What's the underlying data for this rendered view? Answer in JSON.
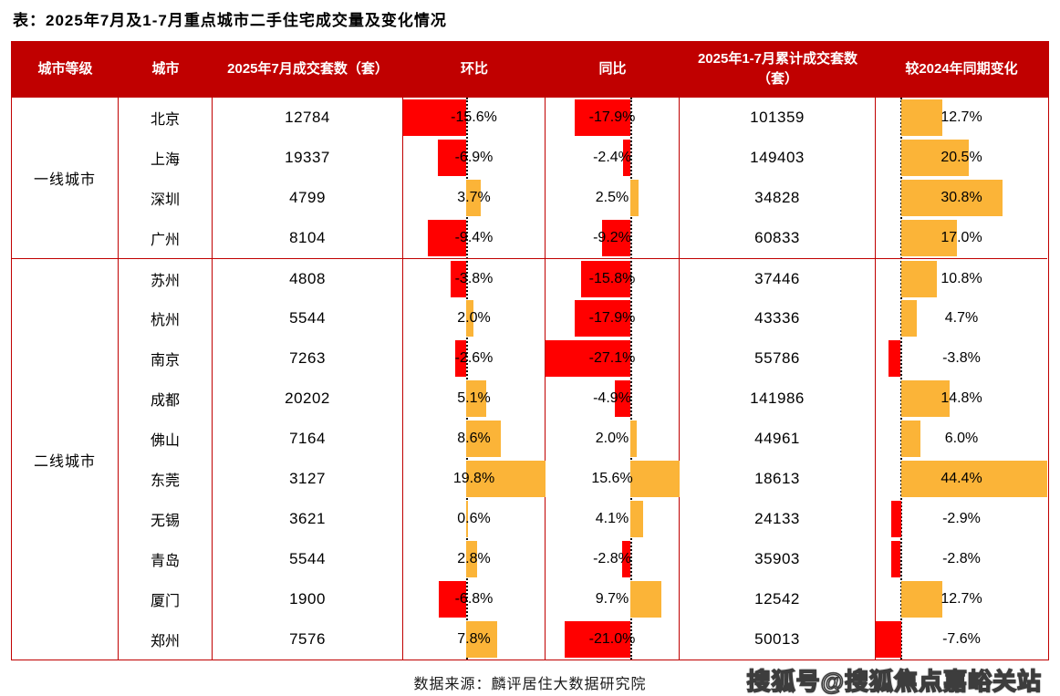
{
  "title": "表：2025年7月及1-7月重点城市二手住宅成交量及变化情况",
  "footer": {
    "source": "数据来源：麟评居住大数据研究院"
  },
  "watermark": "搜狐号@搜狐焦点嘉峪关站",
  "colors": {
    "header_bg": "#c00000",
    "table_border": "#c00000",
    "bar_negative": "#ff0000",
    "bar_positive": "#fbb438"
  },
  "chart_data": {
    "type": "table",
    "title": "2025年7月及1-7月重点城市二手住宅成交量及变化情况",
    "columns": [
      "城市等级",
      "城市",
      "2025年7月成交套数（套）",
      "环比",
      "同比",
      "2025年1-7月累计成交套数（套）",
      "较2024年同期变化"
    ],
    "bar_columns_note": "环比 / 同比 / 较2024年同期变化 rendered as data bars; red = negative, orange = positive; dotted line = zero axis auto-scaled to column min/max",
    "groups": [
      {
        "tier": "一线城市",
        "rows": [
          {
            "city": "北京",
            "jul": "12784",
            "mom": -15.6,
            "mom_label": "-15.6%",
            "yoy": -17.9,
            "yoy_label": "-17.9%",
            "cum": "101359",
            "chg": 12.7,
            "chg_label": "12.7%"
          },
          {
            "city": "上海",
            "jul": "19337",
            "mom": -6.9,
            "mom_label": "-6.9%",
            "yoy": -2.4,
            "yoy_label": "-2.4%",
            "cum": "149403",
            "chg": 20.5,
            "chg_label": "20.5%"
          },
          {
            "city": "深圳",
            "jul": "4799",
            "mom": 3.7,
            "mom_label": "3.7%",
            "yoy": 2.5,
            "yoy_label": "2.5%",
            "cum": "34828",
            "chg": 30.8,
            "chg_label": "30.8%"
          },
          {
            "city": "广州",
            "jul": "8104",
            "mom": -9.4,
            "mom_label": "-9.4%",
            "yoy": -9.2,
            "yoy_label": "-9.2%",
            "cum": "60833",
            "chg": 17.0,
            "chg_label": "17.0%"
          }
        ]
      },
      {
        "tier": "二线城市",
        "rows": [
          {
            "city": "苏州",
            "jul": "4808",
            "mom": -3.8,
            "mom_label": "-3.8%",
            "yoy": -15.8,
            "yoy_label": "-15.8%",
            "cum": "37446",
            "chg": 10.8,
            "chg_label": "10.8%"
          },
          {
            "city": "杭州",
            "jul": "5544",
            "mom": 2.0,
            "mom_label": "2.0%",
            "yoy": -17.9,
            "yoy_label": "-17.9%",
            "cum": "43336",
            "chg": 4.7,
            "chg_label": "4.7%"
          },
          {
            "city": "南京",
            "jul": "7263",
            "mom": -2.6,
            "mom_label": "-2.6%",
            "yoy": -27.1,
            "yoy_label": "-27.1%",
            "cum": "55786",
            "chg": -3.8,
            "chg_label": "-3.8%"
          },
          {
            "city": "成都",
            "jul": "20202",
            "mom": 5.1,
            "mom_label": "5.1%",
            "yoy": -4.9,
            "yoy_label": "-4.9%",
            "cum": "141986",
            "chg": 14.8,
            "chg_label": "14.8%"
          },
          {
            "city": "佛山",
            "jul": "7164",
            "mom": 8.6,
            "mom_label": "8.6%",
            "yoy": 2.0,
            "yoy_label": "2.0%",
            "cum": "44961",
            "chg": 6.0,
            "chg_label": "6.0%"
          },
          {
            "city": "东莞",
            "jul": "3127",
            "mom": 19.8,
            "mom_label": "19.8%",
            "yoy": 15.6,
            "yoy_label": "15.6%",
            "cum": "18613",
            "chg": 44.4,
            "chg_label": "44.4%"
          },
          {
            "city": "无锡",
            "jul": "3621",
            "mom": 0.6,
            "mom_label": "0.6%",
            "yoy": 4.1,
            "yoy_label": "4.1%",
            "cum": "24133",
            "chg": -2.9,
            "chg_label": "-2.9%"
          },
          {
            "city": "青岛",
            "jul": "5544",
            "mom": 2.8,
            "mom_label": "2.8%",
            "yoy": -2.8,
            "yoy_label": "-2.8%",
            "cum": "35903",
            "chg": -2.8,
            "chg_label": "-2.8%"
          },
          {
            "city": "厦门",
            "jul": "1900",
            "mom": -6.8,
            "mom_label": "-6.8%",
            "yoy": 9.7,
            "yoy_label": "9.7%",
            "cum": "12542",
            "chg": 12.7,
            "chg_label": "12.7%"
          },
          {
            "city": "郑州",
            "jul": "7576",
            "mom": 7.8,
            "mom_label": "7.8%",
            "yoy": -21.0,
            "yoy_label": "-21.0%",
            "cum": "50013",
            "chg": -7.6,
            "chg_label": "-7.6%"
          }
        ]
      }
    ]
  }
}
